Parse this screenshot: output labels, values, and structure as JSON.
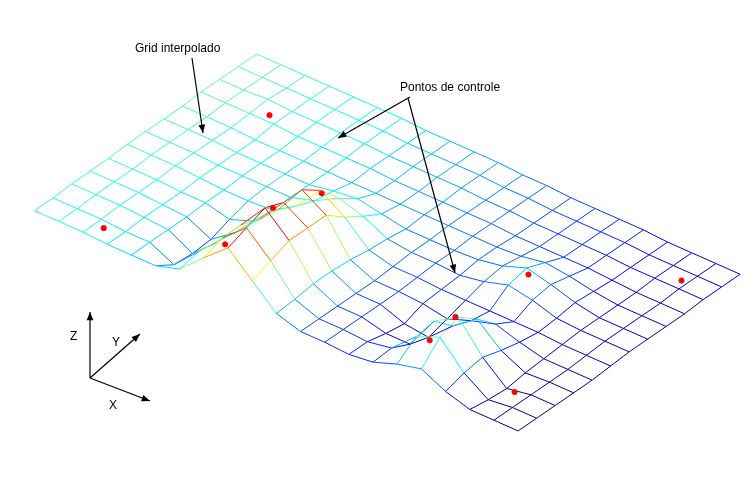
{
  "chart_data": {
    "type": "surface",
    "annotations": [
      {
        "text": "Grid interpolado"
      },
      {
        "text": "Pontos de controle"
      }
    ],
    "axis_labels": {
      "x": "X",
      "y": "Y",
      "z": "Z"
    },
    "tick_labels": false,
    "xlim": [
      0,
      20
    ],
    "ylim": [
      0,
      12
    ],
    "zlim": [
      0,
      6
    ],
    "x": [
      0,
      1,
      2,
      3,
      4,
      5,
      6,
      7,
      8,
      9,
      10,
      11,
      12,
      13,
      14,
      15,
      16,
      17,
      18,
      19,
      20
    ],
    "y": [
      0,
      1,
      2,
      3,
      4,
      5,
      6,
      7,
      8,
      9,
      10,
      11,
      12
    ],
    "z": [
      [
        2.5,
        2.4,
        2.3,
        2.1,
        2.0,
        1.9,
        2.3,
        3.7,
        5.0,
        3.4,
        1.8,
        1.2,
        1.1,
        0.9,
        1.0,
        1.5,
        1.8,
        0.9,
        0.3,
        0.2,
        0.1
      ],
      [
        2.5,
        2.4,
        2.3,
        2.1,
        2.0,
        1.1,
        2.6,
        4.2,
        5.5,
        3.9,
        1.9,
        1.2,
        1.1,
        0.9,
        1.1,
        2.5,
        3.1,
        1.3,
        0.1,
        0.2,
        0.1
      ],
      [
        2.6,
        2.5,
        2.4,
        2.2,
        2.0,
        1.0,
        2.4,
        4.2,
        6.0,
        4.4,
        2.1,
        1.2,
        1.1,
        0.6,
        0.5,
        2.7,
        3.6,
        1.5,
        0.0,
        0.2,
        0.1
      ],
      [
        2.6,
        2.5,
        2.4,
        2.2,
        2.0,
        1.1,
        2.2,
        3.7,
        5.5,
        4.4,
        2.1,
        1.2,
        1.1,
        0.4,
        0.1,
        1.5,
        2.6,
        1.1,
        0.2,
        0.2,
        0.1
      ],
      [
        2.6,
        2.5,
        2.4,
        2.2,
        2.1,
        1.6,
        2.1,
        3.5,
        5.5,
        4.4,
        2.0,
        1.2,
        1.1,
        0.9,
        0.5,
        1.0,
        1.4,
        0.8,
        0.3,
        0.2,
        0.1
      ],
      [
        2.7,
        2.6,
        2.5,
        2.3,
        2.1,
        2.0,
        2.0,
        2.9,
        4.6,
        3.4,
        1.8,
        1.3,
        1.2,
        1.0,
        0.9,
        0.8,
        0.7,
        0.6,
        0.4,
        0.3,
        0.2
      ],
      [
        2.7,
        2.6,
        2.5,
        2.3,
        2.2,
        2.1,
        2.0,
        2.4,
        3.2,
        2.6,
        1.7,
        1.4,
        1.3,
        1.1,
        1.3,
        1.7,
        1.3,
        0.7,
        0.5,
        0.4,
        0.3
      ],
      [
        2.7,
        2.6,
        2.5,
        2.3,
        2.2,
        2.1,
        2.0,
        2.2,
        2.3,
        1.9,
        1.5,
        1.4,
        1.3,
        1.3,
        1.5,
        2.0,
        1.5,
        0.9,
        0.5,
        0.4,
        0.3
      ],
      [
        2.7,
        2.6,
        2.5,
        2.3,
        2.2,
        2.1,
        2.0,
        1.9,
        1.8,
        1.7,
        1.6,
        1.5,
        1.4,
        1.3,
        1.3,
        1.5,
        1.2,
        0.8,
        0.5,
        0.4,
        0.3
      ],
      [
        2.8,
        2.7,
        2.6,
        2.5,
        2.3,
        2.2,
        2.1,
        2.0,
        1.8,
        1.7,
        1.6,
        1.5,
        1.4,
        1.2,
        1.1,
        1.0,
        0.9,
        0.7,
        0.5,
        0.4,
        0.3
      ],
      [
        2.8,
        2.7,
        2.7,
        2.5,
        2.4,
        2.3,
        2.2,
        2.0,
        1.9,
        1.8,
        1.7,
        1.5,
        1.4,
        1.2,
        1.1,
        1.0,
        0.9,
        0.7,
        0.6,
        0.5,
        0.4
      ],
      [
        2.8,
        2.7,
        2.6,
        2.5,
        2.4,
        2.3,
        2.2,
        2.0,
        1.9,
        1.8,
        1.7,
        1.5,
        1.4,
        1.2,
        1.1,
        1.0,
        0.9,
        0.7,
        0.6,
        0.5,
        0.4
      ],
      [
        2.8,
        2.7,
        2.6,
        2.5,
        2.4,
        2.3,
        2.2,
        2.0,
        1.9,
        1.8,
        1.7,
        1.5,
        1.4,
        1.2,
        1.1,
        1.0,
        0.9,
        0.7,
        0.6,
        0.5,
        0.4
      ]
    ],
    "control_points": {
      "x": [
        2.6,
        2.4,
        8.2,
        8.1,
        7.5,
        15.3,
        15.8,
        18.8,
        14.2,
        18.4
      ],
      "y": [
        9.3,
        0.6,
        4.8,
        2.3,
        0.5,
        6.7,
        2.1,
        10.4,
        2.8,
        1.9
      ],
      "z": [
        2.6,
        2.3,
        4.7,
        5.8,
        4.5,
        2.0,
        3.4,
        0.6,
        0.2,
        0.1
      ],
      "color": "#ff0000",
      "marker": "circle"
    }
  }
}
